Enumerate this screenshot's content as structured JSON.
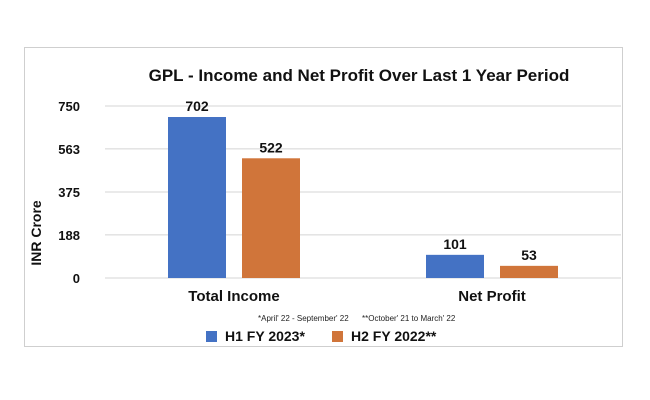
{
  "chart_data": {
    "type": "bar",
    "title": "GPL - Income and Net Profit Over Last 1 Year Period",
    "ylabel": "INR Crore",
    "xlabel": "",
    "ylim": [
      0,
      750
    ],
    "yticks": [
      0,
      188,
      375,
      563,
      750
    ],
    "grid": true,
    "legend_position": "bottom",
    "categories": [
      "Total Income",
      "Net Profit"
    ],
    "series": [
      {
        "name": "H1 FY 2023*",
        "color": "#4472C4",
        "values": [
          702,
          101
        ]
      },
      {
        "name": "H2 FY 2022**",
        "color": "#D0753A",
        "values": [
          522,
          53
        ]
      }
    ],
    "footnotes": [
      "*April' 22 - September' 22",
      "**October' 21 to March' 22"
    ]
  }
}
